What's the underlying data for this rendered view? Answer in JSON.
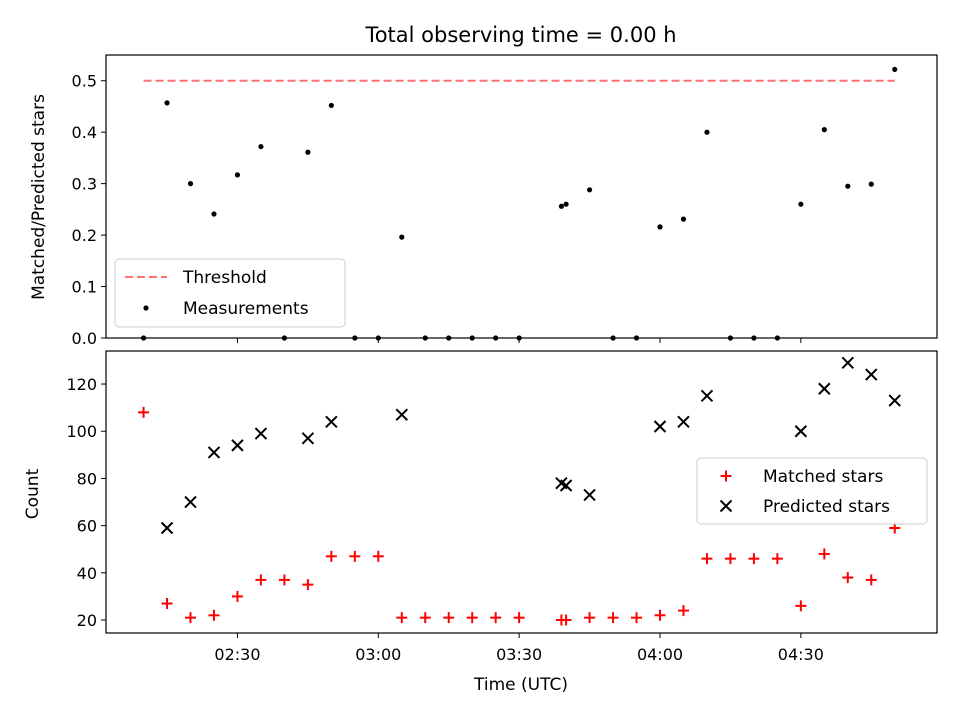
{
  "title": "Total observing time = 0.00 h",
  "colors": {
    "threshold": "#ff7070",
    "measurements": "#000000",
    "matched": "#ff0000",
    "predicted": "#000000"
  },
  "chart_data": [
    {
      "type": "scatter",
      "panel": "top",
      "title": "Total observing time = 0.00 h",
      "xlabel": "",
      "ylabel": "Matched/Predicted stars",
      "ylim": [
        0,
        0.55
      ],
      "yticks": [
        0.0,
        0.1,
        0.2,
        0.3,
        0.4,
        0.5
      ],
      "ytick_labels": [
        "0.0",
        "0.1",
        "0.2",
        "0.3",
        "0.4",
        "0.5"
      ],
      "xlim": [
        "02:02",
        "04:59"
      ],
      "xtick_positions": [
        "02:30",
        "03:00",
        "03:30",
        "04:00",
        "04:30"
      ],
      "grid": false,
      "legend_position": "lower-left",
      "threshold": {
        "name": "Threshold",
        "value": 0.5,
        "x_range": [
          "02:10",
          "04:50"
        ],
        "style": "dashed"
      },
      "series": [
        {
          "name": "Measurements",
          "marker": "dot",
          "x": [
            "02:10",
            "02:15",
            "02:20",
            "02:25",
            "02:30",
            "02:35",
            "02:40",
            "02:45",
            "02:50",
            "02:55",
            "03:00",
            "03:05",
            "03:10",
            "03:15",
            "03:20",
            "03:25",
            "03:30",
            "03:39",
            "03:40",
            "03:45",
            "03:50",
            "03:55",
            "04:00",
            "04:05",
            "04:10",
            "04:15",
            "04:20",
            "04:25",
            "04:30",
            "04:35",
            "04:40",
            "04:45",
            "04:50"
          ],
          "values": [
            0.0,
            0.457,
            0.3,
            0.241,
            0.317,
            0.372,
            0.0,
            0.361,
            0.452,
            0.0,
            0.0,
            0.196,
            0.0,
            0.0,
            0.0,
            0.0,
            0.0,
            0.256,
            0.26,
            0.288,
            0.0,
            0.0,
            0.216,
            0.231,
            0.4,
            0.0,
            0.0,
            0.0,
            0.26,
            0.405,
            0.295,
            0.299,
            0.522
          ]
        }
      ]
    },
    {
      "type": "scatter",
      "panel": "bottom",
      "title": "",
      "xlabel": "Time (UTC)",
      "ylabel": "Count",
      "ylim": [
        14.5,
        134
      ],
      "yticks": [
        20,
        40,
        60,
        80,
        100,
        120
      ],
      "ytick_labels": [
        "20",
        "40",
        "60",
        "80",
        "100",
        "120"
      ],
      "xlim": [
        "02:02",
        "04:59"
      ],
      "xtick_positions": [
        "02:30",
        "03:00",
        "03:30",
        "04:00",
        "04:30"
      ],
      "xtick_labels": [
        "02:30",
        "03:00",
        "03:30",
        "04:00",
        "04:30"
      ],
      "grid": false,
      "legend_position": "center-right",
      "series": [
        {
          "name": "Matched stars",
          "marker": "plus",
          "x": [
            "02:10",
            "02:15",
            "02:20",
            "02:25",
            "02:30",
            "02:35",
            "02:40",
            "02:45",
            "02:50",
            "02:55",
            "03:00",
            "03:05",
            "03:10",
            "03:15",
            "03:20",
            "03:25",
            "03:30",
            "03:39",
            "03:40",
            "03:45",
            "03:50",
            "03:55",
            "04:00",
            "04:05",
            "04:10",
            "04:15",
            "04:20",
            "04:25",
            "04:30",
            "04:35",
            "04:40",
            "04:45",
            "04:50"
          ],
          "values": [
            108,
            27,
            21,
            22,
            30,
            37,
            37,
            35,
            47,
            47,
            47,
            21,
            21,
            21,
            21,
            21,
            21,
            20,
            20,
            21,
            21,
            21,
            22,
            24,
            46,
            46,
            46,
            46,
            26,
            48,
            38,
            37,
            59
          ]
        },
        {
          "name": "Predicted stars",
          "marker": "x",
          "x": [
            "02:15",
            "02:20",
            "02:25",
            "02:30",
            "02:35",
            "02:45",
            "02:50",
            "03:05",
            "03:39",
            "03:40",
            "03:45",
            "04:00",
            "04:05",
            "04:10",
            "04:30",
            "04:35",
            "04:40",
            "04:45",
            "04:50"
          ],
          "values": [
            59,
            70,
            91,
            94,
            99,
            97,
            104,
            107,
            78,
            77,
            73,
            102,
            104,
            115,
            100,
            118,
            129,
            124,
            113
          ]
        }
      ]
    }
  ]
}
